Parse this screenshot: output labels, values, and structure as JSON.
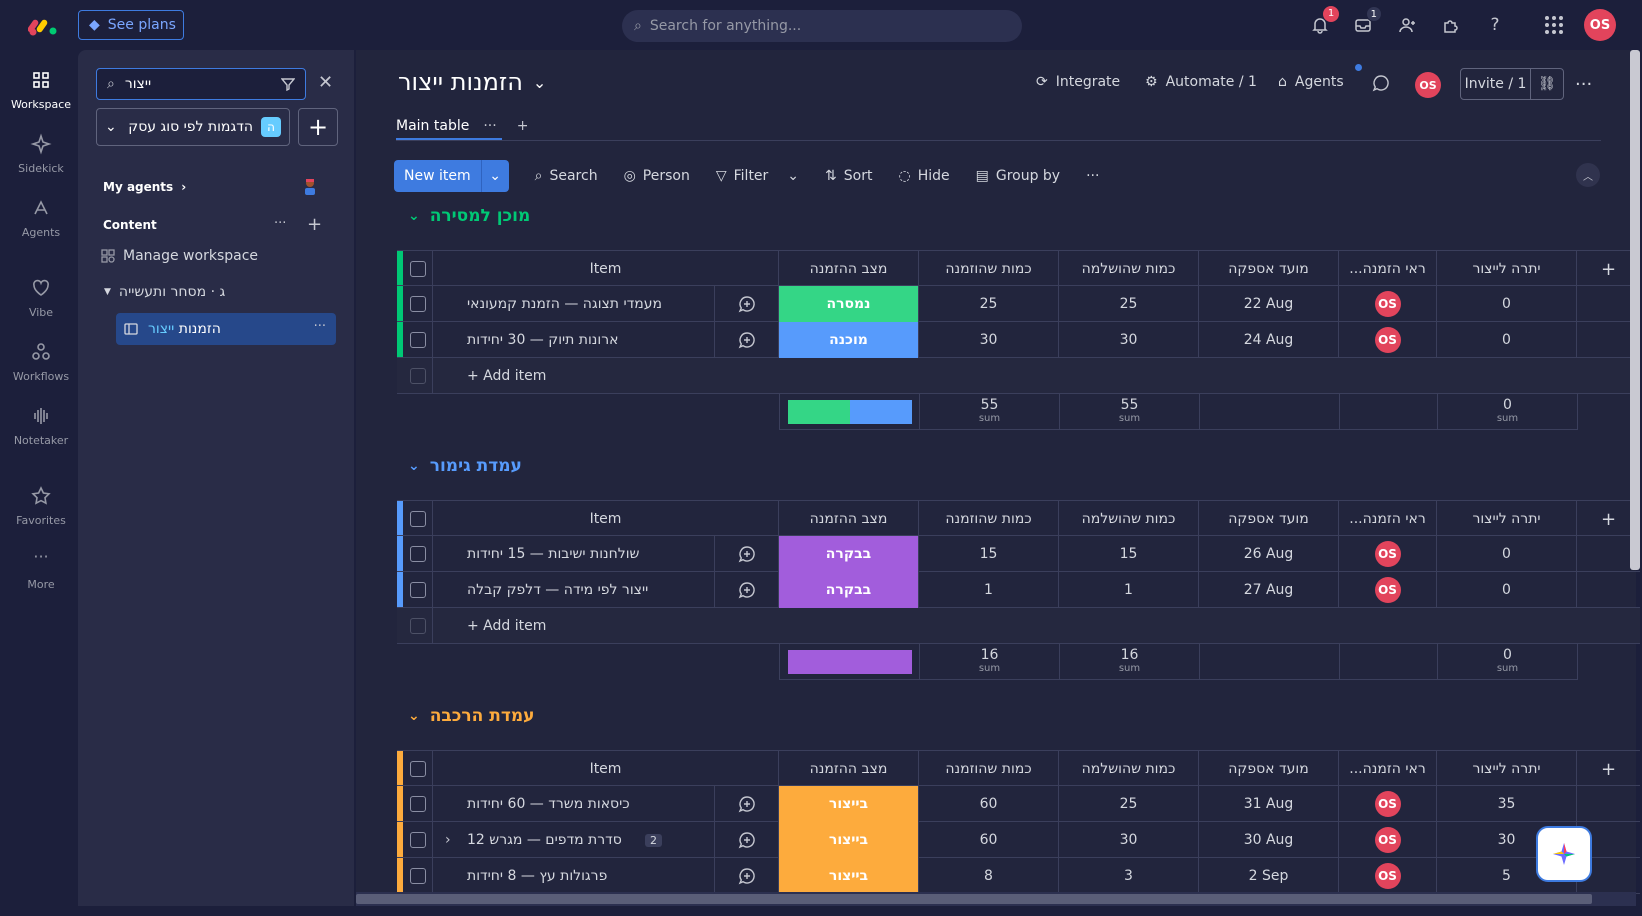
{
  "topbar": {
    "see_plans": "See plans",
    "search_placeholder": "Search for anything...",
    "notifications_count": "1",
    "inbox_count": "1",
    "user_initials": "OS"
  },
  "rail": [
    {
      "label": "Workspace",
      "icon": "workspace-icon"
    },
    {
      "label": "Sidekick",
      "icon": "sidekick-icon"
    },
    {
      "label": "Agents",
      "icon": "agents-icon"
    },
    {
      "label": "Vibe",
      "icon": "vibe-icon"
    },
    {
      "label": "Workflows",
      "icon": "workflows-icon"
    },
    {
      "label": "Notetaker",
      "icon": "notetaker-icon"
    },
    {
      "label": "Favorites",
      "icon": "favorites-icon"
    },
    {
      "label": "More",
      "icon": "more-icon"
    }
  ],
  "sidebar": {
    "search_value": "ייצור",
    "workspace_name": "הדגמות לפי סוג עסק",
    "workspace_badge": "ה",
    "my_agents": "My agents",
    "content": "Content",
    "manage_workspace": "Manage workspace",
    "folder": "ג · מסחר ותעשייה",
    "board_item_prefix": "הזמנות",
    "board_item_highlight": "ייצור"
  },
  "board": {
    "title": "הזמנות ייצור",
    "integrate": "Integrate",
    "automate": "Automate / 1",
    "agents": "Agents",
    "invite": "Invite / 1",
    "user_initials": "OS",
    "tab_main": "Main table",
    "toolbar": {
      "new_item": "New item",
      "search": "Search",
      "person": "Person",
      "filter": "Filter",
      "sort": "Sort",
      "hide": "Hide",
      "group_by": "Group by"
    }
  },
  "columns": {
    "item": "Item",
    "status": "מצב ההזמנה",
    "ordered": "כמות שהוזמנה",
    "completed": "כמות שהושלמה",
    "due": "מועד אספקה",
    "owner": "...ראי הזמנה",
    "remaining": "יתרה לייצור"
  },
  "groups": [
    {
      "title": "מוכן למסירה",
      "color": "#00c875",
      "rows": [
        {
          "name": "מעמדי תצוגה — הזמנת קמעונאי",
          "status": "נמסרה",
          "status_color": "#34d686",
          "ordered": "25",
          "completed": "25",
          "due": "22 Aug",
          "owner": "OS",
          "remaining": "0"
        },
        {
          "name": "ארונות תיוק — 30 יחידות",
          "status": "מוכנה",
          "status_color": "#579bfc",
          "ordered": "30",
          "completed": "30",
          "due": "24 Aug",
          "owner": "OS",
          "remaining": "0"
        }
      ],
      "add_item": "+ Add item",
      "sum_ordered": "55",
      "sum_completed": "55",
      "sum_remaining": "0",
      "sum_label": "sum",
      "status_summary": [
        {
          "color": "#34d686",
          "fraction": 0.5
        },
        {
          "color": "#579bfc",
          "fraction": 0.5
        }
      ]
    },
    {
      "title": "עמדת גימור",
      "color": "#579bfc",
      "rows": [
        {
          "name": "שולחנות ישיבות — 15 יחידות",
          "status": "בבקרה",
          "status_color": "#a25ddc",
          "ordered": "15",
          "completed": "15",
          "due": "26 Aug",
          "owner": "OS",
          "remaining": "0"
        },
        {
          "name": "ייצור לפי מידה — דלפק קבלה",
          "status": "בבקרה",
          "status_color": "#a25ddc",
          "ordered": "1",
          "completed": "1",
          "due": "27 Aug",
          "owner": "OS",
          "remaining": "0"
        }
      ],
      "add_item": "+ Add item",
      "sum_ordered": "16",
      "sum_completed": "16",
      "sum_remaining": "0",
      "sum_label": "sum",
      "status_summary": [
        {
          "color": "#a25ddc",
          "fraction": 1.0
        }
      ]
    },
    {
      "title": "עמדת הרכבה",
      "color": "#fdab3d",
      "rows": [
        {
          "name": "כיסאות משרד — 60 יחידות",
          "status": "בייצור",
          "status_color": "#fdab3d",
          "ordered": "60",
          "completed": "25",
          "due": "31 Aug",
          "owner": "OS",
          "remaining": "35"
        },
        {
          "name": "סדרת מדפים — מגרש 12",
          "status": "בייצור",
          "status_color": "#fdab3d",
          "ordered": "60",
          "completed": "30",
          "due": "30 Aug",
          "owner": "OS",
          "remaining": "30",
          "subitems": "2"
        },
        {
          "name": "פרגולות עץ — 8 יחידות",
          "status": "בייצור",
          "status_color": "#fdab3d",
          "ordered": "8",
          "completed": "3",
          "due": "2 Sep",
          "owner": "OS",
          "remaining": "5"
        }
      ]
    }
  ]
}
